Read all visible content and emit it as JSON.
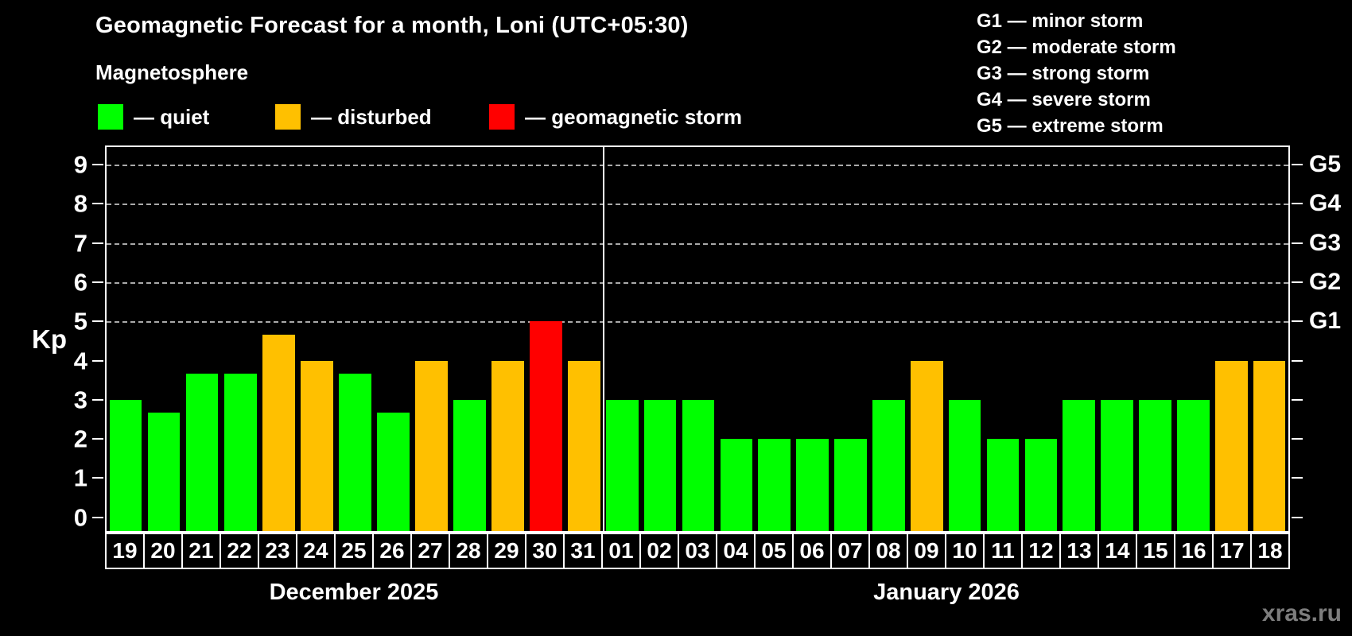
{
  "header": {
    "title": "Geomagnetic Forecast for a month, Loni (UTC+05:30)",
    "subtitle": "Magnetosphere"
  },
  "legend": {
    "items": [
      {
        "name": "quiet",
        "label": "— quiet",
        "color": "#00ff00"
      },
      {
        "name": "disturbed",
        "label": "— disturbed",
        "color": "#ffc000"
      },
      {
        "name": "storm",
        "label": "— geomagnetic storm",
        "color": "#ff0000"
      }
    ]
  },
  "g_scale": {
    "lines": [
      "G1 — minor storm",
      "G2 — moderate storm",
      "G3 — strong storm",
      "G4 — severe storm",
      "G5 — extreme storm"
    ]
  },
  "watermark": "xras.ru",
  "chart_data": {
    "type": "bar",
    "title": "Geomagnetic Forecast for a month, Loni (UTC+05:30)",
    "subtitle": "Magnetosphere",
    "ylabel": "Kp",
    "ylim": [
      -0.35,
      9.45
    ],
    "yticks": [
      0,
      1,
      2,
      3,
      4,
      5,
      6,
      7,
      8,
      9
    ],
    "gridlines_kp": [
      5,
      6,
      7,
      8,
      9
    ],
    "right_axis": [
      {
        "kp": 5,
        "label": "G1"
      },
      {
        "kp": 6,
        "label": "G2"
      },
      {
        "kp": 7,
        "label": "G3"
      },
      {
        "kp": 8,
        "label": "G4"
      },
      {
        "kp": 9,
        "label": "G5"
      }
    ],
    "status_colors": {
      "quiet": "#00ff00",
      "disturbed": "#ffc000",
      "storm": "#ff0000"
    },
    "groups": [
      {
        "month_label": "December 2025",
        "days": [
          {
            "day": "19",
            "kp": 3,
            "status": "quiet"
          },
          {
            "day": "20",
            "kp": 2.67,
            "status": "quiet"
          },
          {
            "day": "21",
            "kp": 3.67,
            "status": "quiet"
          },
          {
            "day": "22",
            "kp": 3.67,
            "status": "quiet"
          },
          {
            "day": "23",
            "kp": 4.67,
            "status": "disturbed"
          },
          {
            "day": "24",
            "kp": 4,
            "status": "disturbed"
          },
          {
            "day": "25",
            "kp": 3.67,
            "status": "quiet"
          },
          {
            "day": "26",
            "kp": 2.67,
            "status": "quiet"
          },
          {
            "day": "27",
            "kp": 4,
            "status": "disturbed"
          },
          {
            "day": "28",
            "kp": 3,
            "status": "quiet"
          },
          {
            "day": "29",
            "kp": 4,
            "status": "disturbed"
          },
          {
            "day": "30",
            "kp": 5,
            "status": "storm"
          },
          {
            "day": "31",
            "kp": 4,
            "status": "disturbed"
          }
        ]
      },
      {
        "month_label": "January 2026",
        "days": [
          {
            "day": "01",
            "kp": 3,
            "status": "quiet"
          },
          {
            "day": "02",
            "kp": 3,
            "status": "quiet"
          },
          {
            "day": "03",
            "kp": 3,
            "status": "quiet"
          },
          {
            "day": "04",
            "kp": 2,
            "status": "quiet"
          },
          {
            "day": "05",
            "kp": 2,
            "status": "quiet"
          },
          {
            "day": "06",
            "kp": 2,
            "status": "quiet"
          },
          {
            "day": "07",
            "kp": 2,
            "status": "quiet"
          },
          {
            "day": "08",
            "kp": 3,
            "status": "quiet"
          },
          {
            "day": "09",
            "kp": 4,
            "status": "disturbed"
          },
          {
            "day": "10",
            "kp": 3,
            "status": "quiet"
          },
          {
            "day": "11",
            "kp": 2,
            "status": "quiet"
          },
          {
            "day": "12",
            "kp": 2,
            "status": "quiet"
          },
          {
            "day": "13",
            "kp": 3,
            "status": "quiet"
          },
          {
            "day": "14",
            "kp": 3,
            "status": "quiet"
          },
          {
            "day": "15",
            "kp": 3,
            "status": "quiet"
          },
          {
            "day": "16",
            "kp": 3,
            "status": "quiet"
          },
          {
            "day": "17",
            "kp": 4,
            "status": "disturbed"
          },
          {
            "day": "18",
            "kp": 4,
            "status": "disturbed"
          }
        ]
      }
    ]
  }
}
